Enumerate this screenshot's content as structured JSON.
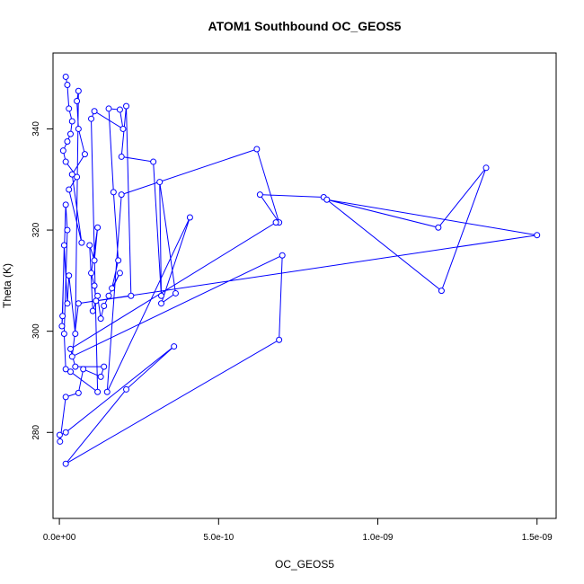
{
  "chart_data": {
    "type": "line",
    "title": "ATOM1 Southbound OC_GEOS5",
    "xlabel": "OC_GEOS5",
    "ylabel": "Theta (K)",
    "xlim": [
      -2e-11,
      1.56e-09
    ],
    "ylim": [
      263,
      355
    ],
    "xticks": [
      0,
      5e-10,
      1e-09,
      1.5e-09
    ],
    "xtick_labels": [
      "0.0e+00",
      "5.0e-10",
      "1.0e-09",
      "1.5e-09"
    ],
    "yticks": [
      280,
      300,
      320,
      340
    ],
    "ytick_labels": [
      "280",
      "300",
      "320",
      "340"
    ],
    "grid": false,
    "legend": "none",
    "series": [
      {
        "color": "#0000ff",
        "marker": "open-circle",
        "points": [
          [
            2e-11,
            350.3
          ],
          [
            2.5e-11,
            348.7
          ],
          [
            3e-11,
            344.0
          ],
          [
            4e-11,
            341.5
          ],
          [
            3.5e-11,
            339.0
          ],
          [
            2.5e-11,
            337.5
          ],
          [
            1.2e-11,
            335.7
          ],
          [
            2e-11,
            333.5
          ],
          [
            5.5e-11,
            330.5
          ],
          [
            3e-11,
            328.0
          ],
          [
            7e-11,
            317.5
          ],
          [
            4e-11,
            331.0
          ],
          [
            8e-11,
            335.0
          ],
          [
            6e-11,
            340.0
          ],
          [
            5.5e-11,
            345.5
          ],
          [
            6e-11,
            347.5
          ],
          [
            5e-11,
            299.5
          ],
          [
            3e-11,
            311.0
          ],
          [
            2.5e-11,
            305.5
          ],
          [
            1.5e-11,
            317.0
          ],
          [
            1e-11,
            303.0
          ],
          [
            8e-12,
            301.0
          ],
          [
            2e-11,
            325.0
          ],
          [
            2.5e-11,
            320.0
          ],
          [
            1.5e-11,
            299.5
          ],
          [
            2e-11,
            292.5
          ],
          [
            3.5e-11,
            292.0
          ],
          [
            1.2e-10,
            288.0
          ],
          [
            1e-10,
            342.0
          ],
          [
            1.1e-10,
            343.5
          ],
          [
            2e-10,
            340.0
          ],
          [
            1.9e-10,
            343.8
          ],
          [
            1.55e-10,
            344.0
          ],
          [
            1.7e-10,
            327.5
          ],
          [
            1.85e-10,
            314.0
          ],
          [
            1.65e-10,
            308.5
          ],
          [
            1.9e-10,
            311.5
          ],
          [
            1.55e-10,
            307.0
          ],
          [
            1.4e-10,
            305.0
          ],
          [
            1.3e-10,
            302.5
          ],
          [
            1.2e-10,
            307.0
          ],
          [
            1.05e-10,
            304.0
          ],
          [
            9.5e-11,
            317.0
          ],
          [
            1.1e-10,
            314.0
          ],
          [
            1.2e-10,
            320.5
          ],
          [
            1e-10,
            311.5
          ],
          [
            1.1e-10,
            309.0
          ],
          [
            1.15e-10,
            306.0
          ],
          [
            2.25e-10,
            307.0
          ],
          [
            2.1e-10,
            344.5
          ],
          [
            1.95e-10,
            334.5
          ],
          [
            2.95e-10,
            333.5
          ],
          [
            3.2e-10,
            307.0
          ],
          [
            3.15e-10,
            329.5
          ],
          [
            3.65e-10,
            307.5
          ],
          [
            3.2e-10,
            305.5
          ],
          [
            4.1e-10,
            322.5
          ],
          [
            1.5e-10,
            288.0
          ],
          [
            1.95e-10,
            327.0
          ],
          [
            6.2e-10,
            336.0
          ],
          [
            6.9e-10,
            321.5
          ],
          [
            6.3e-10,
            327.0
          ],
          [
            8.3e-10,
            326.5
          ],
          [
            1.2e-09,
            308.0
          ],
          [
            1.34e-09,
            332.3
          ],
          [
            1.19e-09,
            320.5
          ],
          [
            8.4e-10,
            326.0
          ],
          [
            1.5e-09,
            319.0
          ],
          [
            6e-11,
            305.5
          ],
          [
            4e-11,
            295.0
          ],
          [
            7e-10,
            315.0
          ],
          [
            6.9e-10,
            298.3
          ],
          [
            2e-11,
            273.8
          ],
          [
            2.1e-10,
            288.5
          ],
          [
            3.6e-10,
            297.0
          ],
          [
            2e-11,
            280.0
          ],
          [
            1e-12,
            279.5
          ],
          [
            2e-12,
            278.2
          ],
          [
            2e-11,
            287.0
          ],
          [
            6e-11,
            287.8
          ],
          [
            7.5e-11,
            292.5
          ],
          [
            1.3e-10,
            291.0
          ],
          [
            1.4e-10,
            293.0
          ],
          [
            5e-11,
            293.0
          ],
          [
            3.5e-11,
            296.5
          ],
          [
            6.8e-10,
            321.5
          ]
        ]
      }
    ]
  }
}
